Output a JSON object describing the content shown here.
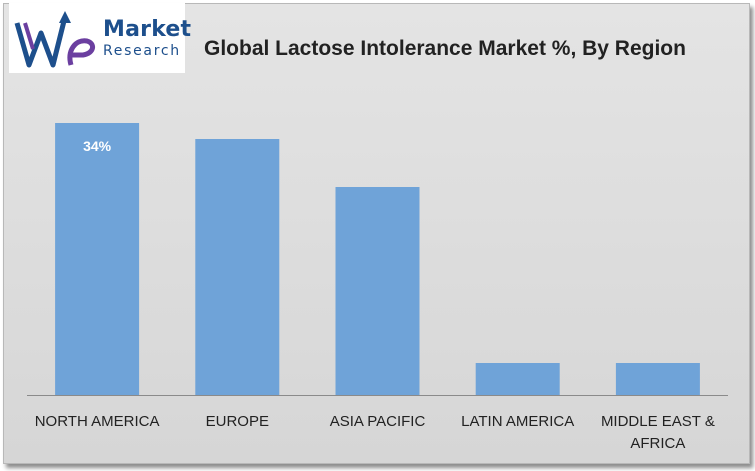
{
  "brand": {
    "name_line1": "Market",
    "name_line2": "Research",
    "mark_letters": "We"
  },
  "chart_data": {
    "type": "bar",
    "title": "Global Lactose Intolerance Market %, By Region",
    "categories": [
      "NORTH AMERICA",
      "EUROPE",
      "ASIA PACIFIC",
      "LATIN AMERICA",
      "MIDDLE EAST & AFRICA"
    ],
    "category_lines": [
      [
        "NORTH AMERICA"
      ],
      [
        "EUROPE"
      ],
      [
        "ASIA PACIFIC"
      ],
      [
        "LATIN AMERICA"
      ],
      [
        "MIDDLE EAST &",
        "AFRICA"
      ]
    ],
    "values": [
      34,
      32,
      26,
      4,
      4
    ],
    "data_labels": [
      "34%",
      "",
      "",
      "",
      ""
    ],
    "ylim": [
      0,
      34
    ],
    "grid": false,
    "legend": "none",
    "bar_color": "#6fa3d8",
    "axis_color": "#8a8a8a"
  }
}
